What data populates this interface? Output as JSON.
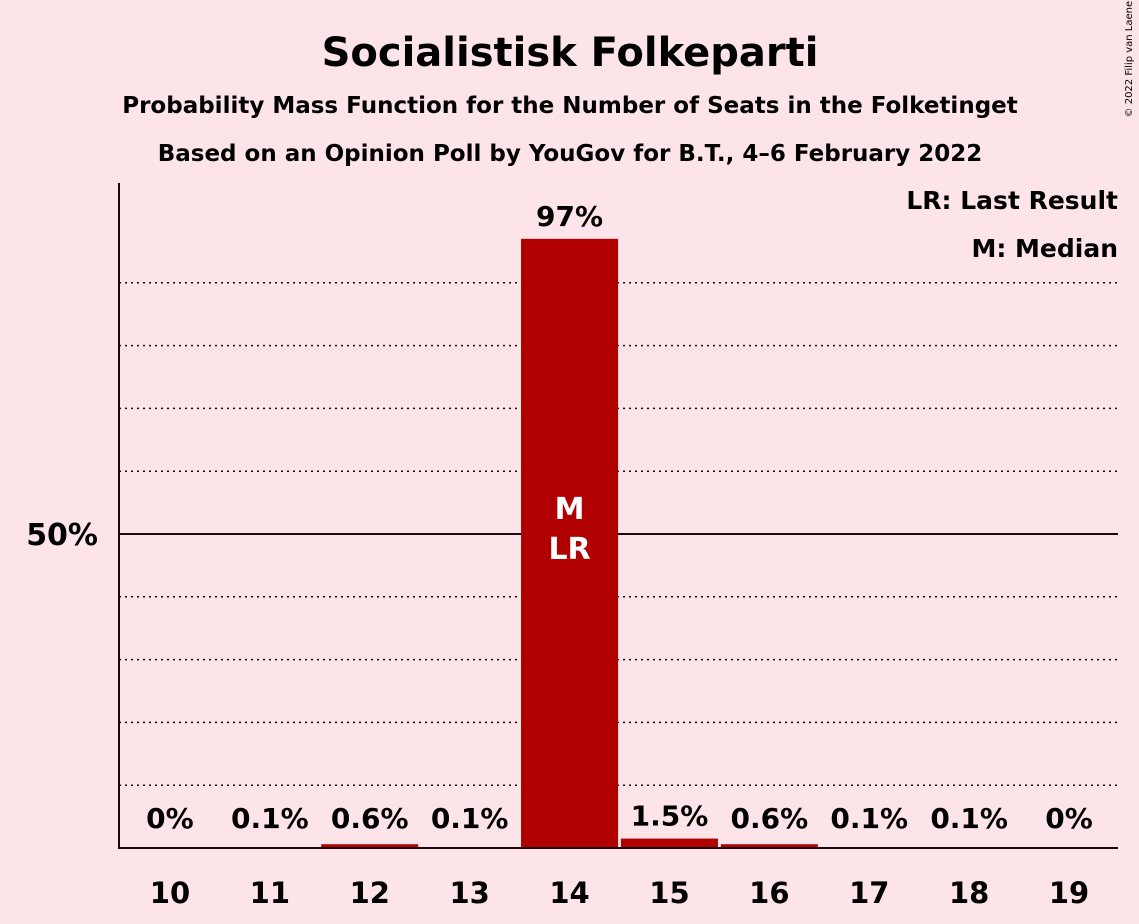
{
  "chart_data": {
    "type": "bar",
    "title": "Socialistisk Folkeparti",
    "subtitle": "Probability Mass Function for the Number of Seats in the Folketinget",
    "subtitle2": "Based on an Opinion Poll by YouGov for B.T., 4–6 February 2022",
    "copyright": "© 2022 Filip van Laenen",
    "categories": [
      "10",
      "11",
      "12",
      "13",
      "14",
      "15",
      "16",
      "17",
      "18",
      "19"
    ],
    "values": [
      0,
      0.1,
      0.6,
      0.1,
      97,
      1.5,
      0.6,
      0.1,
      0.1,
      0
    ],
    "value_labels": [
      "0%",
      "0.1%",
      "0.6%",
      "0.1%",
      "97%",
      "1.5%",
      "0.6%",
      "0.1%",
      "0.1%",
      "0%"
    ],
    "ylim": [
      0,
      100
    ],
    "ytick_value": 50,
    "ytick_label": "50%",
    "minor_gridlines": [
      10,
      20,
      30,
      40,
      60,
      70,
      80,
      90
    ],
    "grid": true,
    "bar_color": "#b00000",
    "background_color": "#fde4e8",
    "median_index": 4,
    "last_result_index": 4,
    "median_marker": "M",
    "last_result_marker": "LR",
    "legend": {
      "placement": "top-right",
      "items": [
        "LR: Last Result",
        "M: Median"
      ]
    }
  }
}
